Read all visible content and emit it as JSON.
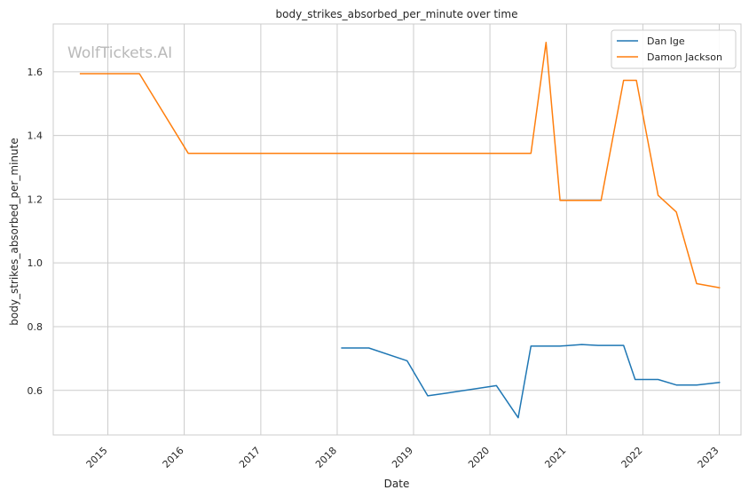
{
  "chart_data": {
    "type": "line",
    "title": "body_strikes_absorbed_per_minute over time",
    "xlabel": "Date",
    "ylabel": "body_strikes_absorbed_per_minute",
    "xlim": [
      "2014-04-15",
      "2023-04-15"
    ],
    "ylim": [
      0.46,
      1.75
    ],
    "x_ticks": [
      "2015",
      "2016",
      "2017",
      "2018",
      "2019",
      "2020",
      "2021",
      "2022",
      "2023"
    ],
    "y_ticks": [
      0.6,
      0.8,
      1.0,
      1.2,
      1.4,
      1.6
    ],
    "grid": true,
    "legend_position": "top-right",
    "watermark": "WolfTickets.AI",
    "series": [
      {
        "name": "Dan Ige",
        "color": "#1f77b4",
        "points": [
          [
            "2018-01-20",
            0.733
          ],
          [
            "2018-06-01",
            0.733
          ],
          [
            "2018-12-01",
            0.693
          ],
          [
            "2019-03-10",
            0.583
          ],
          [
            "2019-06-15",
            0.592
          ],
          [
            "2020-02-01",
            0.615
          ],
          [
            "2020-05-15",
            0.514
          ],
          [
            "2020-07-15",
            0.739
          ],
          [
            "2020-12-01",
            0.739
          ],
          [
            "2021-03-15",
            0.744
          ],
          [
            "2021-06-01",
            0.741
          ],
          [
            "2021-10-01",
            0.741
          ],
          [
            "2021-11-25",
            0.634
          ],
          [
            "2022-03-15",
            0.634
          ],
          [
            "2022-06-10",
            0.617
          ],
          [
            "2022-09-15",
            0.617
          ],
          [
            "2023-01-05",
            0.625
          ]
        ]
      },
      {
        "name": "Damon Jackson",
        "color": "#ff7f0e",
        "points": [
          [
            "2014-08-20",
            1.594
          ],
          [
            "2015-06-01",
            1.594
          ],
          [
            "2016-01-20",
            1.344
          ],
          [
            "2020-07-15",
            1.344
          ],
          [
            "2020-09-25",
            1.692
          ],
          [
            "2020-12-01",
            1.196
          ],
          [
            "2021-06-15",
            1.196
          ],
          [
            "2021-10-01",
            1.573
          ],
          [
            "2021-12-01",
            1.573
          ],
          [
            "2022-03-15",
            1.212
          ],
          [
            "2022-06-10",
            1.16
          ],
          [
            "2022-09-15",
            0.935
          ],
          [
            "2023-01-05",
            0.922
          ]
        ]
      }
    ]
  }
}
